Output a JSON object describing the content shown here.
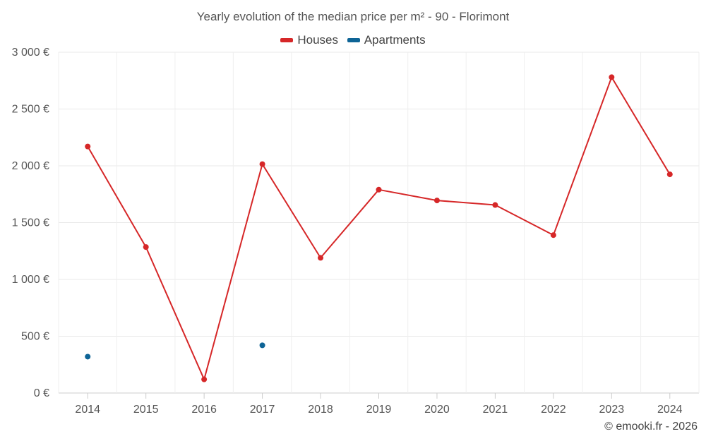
{
  "chart_data": {
    "type": "line",
    "title": "Yearly evolution of the median price per m² - 90 - Florimont",
    "categories": [
      "2014",
      "2015",
      "2016",
      "2017",
      "2018",
      "2019",
      "2020",
      "2021",
      "2022",
      "2023",
      "2024"
    ],
    "series": [
      {
        "name": "Houses",
        "color": "#d62728",
        "values": [
          2170,
          1285,
          120,
          2015,
          1190,
          1790,
          1695,
          1655,
          1390,
          2780,
          1925
        ],
        "connected": true
      },
      {
        "name": "Apartments",
        "color": "#0e6496",
        "values": [
          320,
          null,
          null,
          420,
          null,
          null,
          null,
          null,
          null,
          null,
          null
        ],
        "connected": false
      }
    ],
    "yticks": [
      0,
      500,
      1000,
      1500,
      2000,
      2500,
      3000
    ],
    "ytick_labels": [
      "0 €",
      "500 €",
      "1 000 €",
      "1 500 €",
      "2 000 €",
      "2 500 €",
      "3 000 €"
    ],
    "ylim": [
      0,
      3000
    ],
    "grid": true,
    "legend_position": "top-center"
  },
  "credit": "© emooki.fr - 2026"
}
